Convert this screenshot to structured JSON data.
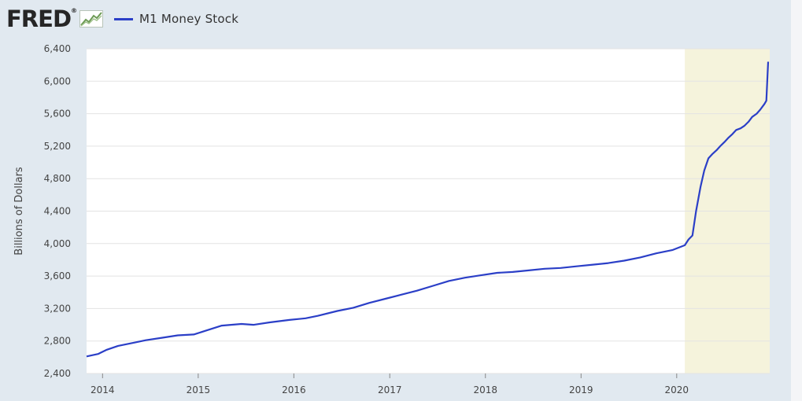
{
  "header": {
    "logo_text": "FRED",
    "legend_label": "M1 Money Stock"
  },
  "colors": {
    "series": "#2b3fc7",
    "recession": "#f5f3dc",
    "grid": "#e3e3e3",
    "plot_bg": "#ffffff",
    "frame_bg": "#e1e9f0"
  },
  "chart_data": {
    "type": "line",
    "title": "",
    "ylabel": "Billions of Dollars",
    "xlabel": "",
    "xlim": [
      "2013-11-01",
      "2020-12-21"
    ],
    "ylim": [
      2400,
      6400
    ],
    "yticks": [
      2400,
      2800,
      3200,
      3600,
      4000,
      4400,
      4800,
      5200,
      5600,
      6000,
      6400
    ],
    "ytick_labels": [
      "2,400",
      "2,800",
      "3,200",
      "3,600",
      "4,000",
      "4,400",
      "4,800",
      "5,200",
      "5,600",
      "6,000",
      "6,400"
    ],
    "xticks": [
      "2014-01-01",
      "2015-01-01",
      "2016-01-01",
      "2017-01-01",
      "2018-01-01",
      "2019-01-01",
      "2020-01-01"
    ],
    "xtick_labels": [
      "2014",
      "2015",
      "2016",
      "2017",
      "2018",
      "2019",
      "2020"
    ],
    "grid": true,
    "legend": "top-left",
    "recession_band": [
      "2020-02-01",
      "2020-12-21"
    ],
    "series": [
      {
        "name": "M1 Money Stock",
        "x": [
          "2013-11-01",
          "2013-12-15",
          "2014-01-15",
          "2014-03-01",
          "2014-05-01",
          "2014-06-15",
          "2014-08-15",
          "2014-10-15",
          "2014-12-15",
          "2015-02-01",
          "2015-04-01",
          "2015-06-15",
          "2015-08-01",
          "2015-10-01",
          "2015-12-15",
          "2016-02-15",
          "2016-04-01",
          "2016-06-15",
          "2016-08-15",
          "2016-10-15",
          "2016-12-15",
          "2017-02-01",
          "2017-04-15",
          "2017-06-15",
          "2017-08-15",
          "2017-10-15",
          "2017-12-15",
          "2018-02-15",
          "2018-04-15",
          "2018-06-15",
          "2018-08-15",
          "2018-10-15",
          "2018-12-15",
          "2019-02-15",
          "2019-04-15",
          "2019-06-15",
          "2019-08-15",
          "2019-10-15",
          "2019-12-15",
          "2020-02-01",
          "2020-02-15",
          "2020-03-01",
          "2020-03-15",
          "2020-04-01",
          "2020-04-15",
          "2020-05-01",
          "2020-05-15",
          "2020-06-01",
          "2020-06-15",
          "2020-07-01",
          "2020-07-15",
          "2020-08-01",
          "2020-08-15",
          "2020-09-01",
          "2020-09-15",
          "2020-10-01",
          "2020-10-15",
          "2020-11-01",
          "2020-11-15",
          "2020-12-01",
          "2020-12-08",
          "2020-12-15"
        ],
        "values": [
          2610,
          2640,
          2690,
          2740,
          2780,
          2810,
          2840,
          2870,
          2880,
          2930,
          2990,
          3010,
          3000,
          3030,
          3060,
          3080,
          3110,
          3170,
          3210,
          3270,
          3320,
          3360,
          3420,
          3480,
          3540,
          3580,
          3610,
          3640,
          3650,
          3670,
          3690,
          3700,
          3720,
          3740,
          3760,
          3790,
          3830,
          3880,
          3920,
          3980,
          4050,
          4100,
          4400,
          4700,
          4900,
          5050,
          5100,
          5150,
          5200,
          5250,
          5300,
          5350,
          5400,
          5420,
          5450,
          5500,
          5560,
          5600,
          5650,
          5720,
          5760,
          6240
        ]
      }
    ]
  }
}
